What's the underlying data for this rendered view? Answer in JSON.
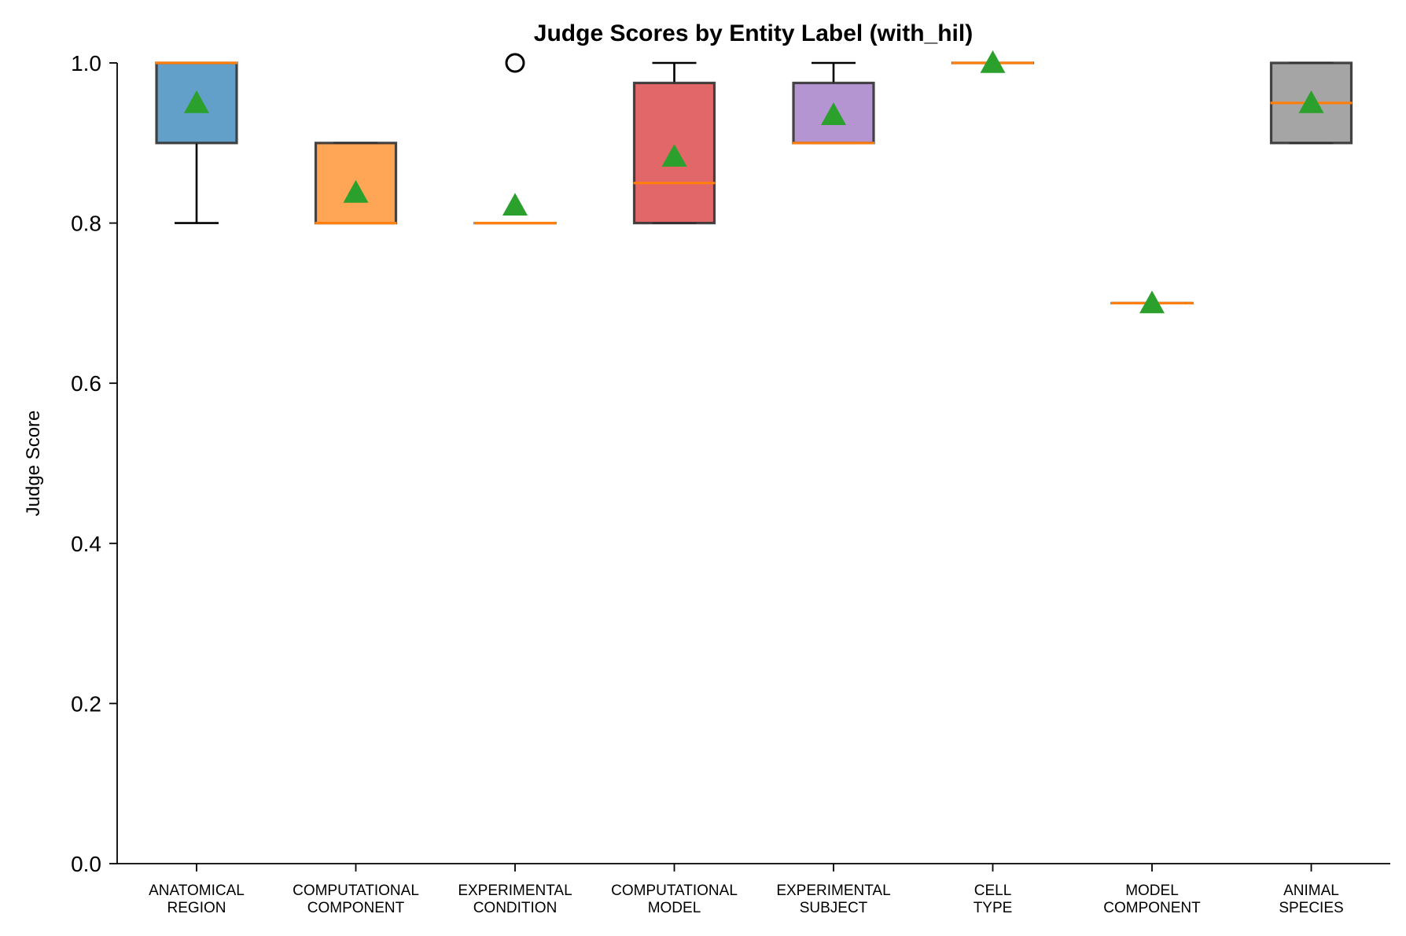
{
  "chart_data": {
    "type": "box",
    "title": "Judge Scores by Entity Label (with_hil)",
    "xlabel": "",
    "ylabel": "Judge Score",
    "ylim": [
      0,
      1.0
    ],
    "yticks": [
      "0.0",
      "0.2",
      "0.4",
      "0.6",
      "0.8",
      "1.0"
    ],
    "grid": false,
    "categories": [
      [
        "ANATOMICAL",
        "REGION"
      ],
      [
        "COMPUTATIONAL",
        "COMPONENT"
      ],
      [
        "EXPERIMENTAL",
        "CONDITION"
      ],
      [
        "COMPUTATIONAL",
        "MODEL"
      ],
      [
        "EXPERIMENTAL",
        "SUBJECT"
      ],
      [
        "CELL",
        "TYPE"
      ],
      [
        "MODEL",
        "COMPONENT"
      ],
      [
        "ANIMAL",
        "SPECIES"
      ]
    ],
    "boxes": [
      {
        "q1": 0.9,
        "median": 1.0,
        "q3": 1.0,
        "whislo": 0.8,
        "whishi": 1.0,
        "mean": 0.95,
        "fliers": [],
        "color": "#1f77b4"
      },
      {
        "q1": 0.8,
        "median": 0.8,
        "q3": 0.9,
        "whislo": 0.8,
        "whishi": 0.9,
        "mean": 0.838,
        "fliers": [],
        "color": "#ff7f0e"
      },
      {
        "q1": 0.8,
        "median": 0.8,
        "q3": 0.8,
        "whislo": 0.8,
        "whishi": 0.8,
        "mean": 0.822,
        "fliers": [
          1.0
        ],
        "color": "#2ca02c"
      },
      {
        "q1": 0.8,
        "median": 0.85,
        "q3": 0.975,
        "whislo": 0.8,
        "whishi": 1.0,
        "mean": 0.883,
        "fliers": [],
        "color": "#d62728"
      },
      {
        "q1": 0.9,
        "median": 0.9,
        "q3": 0.975,
        "whislo": 0.9,
        "whishi": 1.0,
        "mean": 0.935,
        "fliers": [],
        "color": "#9467bd"
      },
      {
        "q1": 1.0,
        "median": 1.0,
        "q3": 1.0,
        "whislo": 1.0,
        "whishi": 1.0,
        "mean": 1.0,
        "fliers": [],
        "color": "#8c564b"
      },
      {
        "q1": 0.7,
        "median": 0.7,
        "q3": 0.7,
        "whislo": 0.7,
        "whishi": 0.7,
        "mean": 0.7,
        "fliers": [],
        "color": "#e377c2"
      },
      {
        "q1": 0.9,
        "median": 0.95,
        "q3": 1.0,
        "whislo": 0.9,
        "whishi": 1.0,
        "mean": 0.95,
        "fliers": [],
        "color": "#7f7f7f"
      }
    ],
    "median_color": "#ff7f0e",
    "mean_marker_color": "#2ca02c"
  }
}
